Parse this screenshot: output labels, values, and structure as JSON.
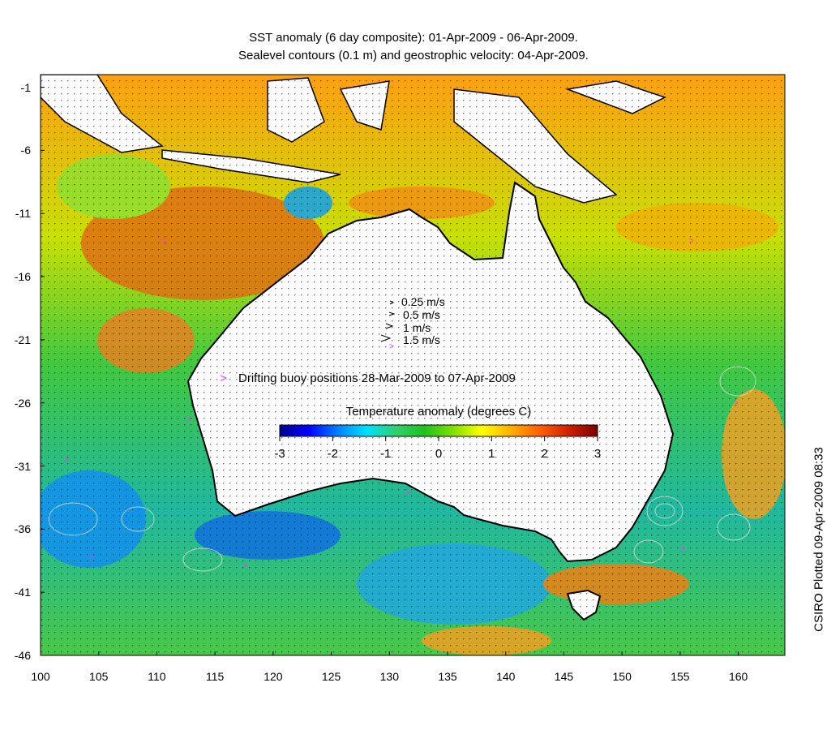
{
  "title": {
    "line1": "SST anomaly (6 day composite): 01-Apr-2009 - 06-Apr-2009.",
    "line2": "Sealevel contours (0.1 m) and geostrophic velocity: 04-Apr-2009."
  },
  "axes": {
    "y_ticks": [
      "-1",
      "-6",
      "-11",
      "-16",
      "-21",
      "-26",
      "-31",
      "-36",
      "-41",
      "-46"
    ],
    "x_ticks": [
      "100",
      "105",
      "110",
      "115",
      "120",
      "125",
      "130",
      "135",
      "140",
      "145",
      "150",
      "155",
      "160"
    ],
    "lon_range": [
      100,
      164
    ],
    "lat_range": [
      -46,
      0
    ]
  },
  "velocity_legend": [
    {
      "label": "0.25 m/s",
      "speed": 0.25
    },
    {
      "label": "0.5 m/s",
      "speed": 0.5
    },
    {
      "label": "1 m/s",
      "speed": 1
    },
    {
      "label": "1.5 m/s",
      "speed": 1.5
    }
  ],
  "buoy_legend": {
    "label": "Drifting buoy positions 28-Mar-2009 to 07-Apr-2009",
    "marker": ">",
    "color": "#ff33ff"
  },
  "colorbar": {
    "title": "Temperature anomaly (degrees C)",
    "ticks": [
      "-3",
      "-2",
      "-1",
      "0",
      "1",
      "2",
      "3"
    ],
    "range": [
      -3,
      3
    ],
    "colors": [
      "#00008f",
      "#0000ff",
      "#0080ff",
      "#00e0ff",
      "#30d070",
      "#20c020",
      "#80e000",
      "#ffff00",
      "#ffb000",
      "#ff6000",
      "#d02000",
      "#800000"
    ]
  },
  "credit": "CSIRO Plotted 09-Apr-2009 08:33",
  "land_color": "#ffffff",
  "coast_color": "#000000"
}
